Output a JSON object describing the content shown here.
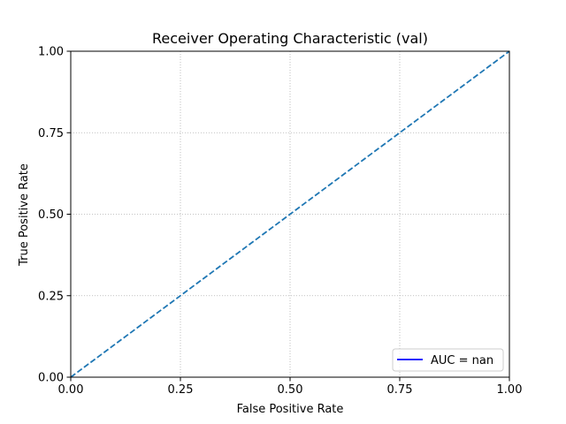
{
  "chart_data": {
    "type": "line",
    "title": "Receiver Operating Characteristic (val)",
    "xlabel": "False Positive Rate",
    "ylabel": "True Positive Rate",
    "xlim": [
      0,
      1
    ],
    "ylim": [
      0,
      1
    ],
    "xticks": [
      0,
      0.25,
      0.5,
      0.75,
      1
    ],
    "yticks": [
      0,
      0.25,
      0.5,
      0.75,
      1
    ],
    "xtick_labels": [
      "0.00",
      "0.25",
      "0.50",
      "0.75",
      "1.00"
    ],
    "ytick_labels": [
      "0.00",
      "0.25",
      "0.50",
      "0.75",
      "1.00"
    ],
    "grid": true,
    "grid_style": "dotted",
    "legend_position": "lower-right",
    "series": [
      {
        "name": "AUC = nan",
        "color": "#0000ff",
        "style": "solid",
        "x": [],
        "y": []
      }
    ],
    "reference_line": {
      "x": [
        0,
        1
      ],
      "y": [
        0,
        1
      ],
      "color": "#1f77b4",
      "style": "dashed"
    }
  }
}
